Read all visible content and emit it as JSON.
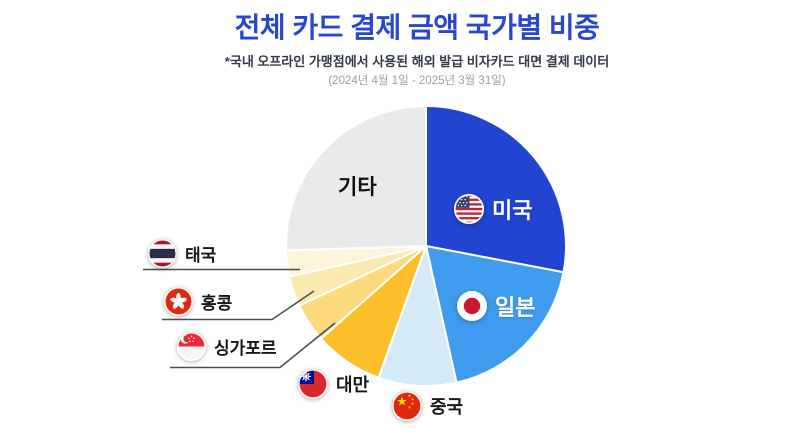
{
  "header": {
    "title": "전체 카드 결제 금액 국가별 비중",
    "subtitle": "*국내 오프라인 가맹점에서 사용된 해외 발급 비자카드 대면 결제 데이터",
    "date_range": "(2024년 4월 1일 - 2025년 3월 31일)"
  },
  "chart_data": {
    "type": "pie",
    "title": "전체 카드 결제 금액 국가별 비중",
    "start_angle_deg": 0,
    "direction": "clockwise",
    "legend_position": "on-slice-and-callouts",
    "slices": [
      {
        "label": "미국",
        "country": "usa",
        "flag_icon": "usa-flag-icon",
        "value_pct": 28.0,
        "color": "#2145d1"
      },
      {
        "label": "일본",
        "country": "japan",
        "flag_icon": "japan-flag-icon",
        "value_pct": 18.5,
        "color": "#3f9bee"
      },
      {
        "label": "중국",
        "country": "china",
        "flag_icon": "china-flag-icon",
        "value_pct": 9.0,
        "color": "#d5eaf7"
      },
      {
        "label": "대만",
        "country": "taiwan",
        "flag_icon": "taiwan-flag-icon",
        "value_pct": 8.0,
        "color": "#fcbf29"
      },
      {
        "label": "싱가포르",
        "country": "singapore",
        "flag_icon": "singapore-flag-icon",
        "value_pct": 4.5,
        "color": "#fcda7d"
      },
      {
        "label": "홍콩",
        "country": "hongkong",
        "flag_icon": "hongkong-flag-icon",
        "value_pct": 3.5,
        "color": "#fce9b0"
      },
      {
        "label": "태국",
        "country": "thailand",
        "flag_icon": "thailand-flag-icon",
        "value_pct": 3.0,
        "color": "#fdf4d9"
      },
      {
        "label": "기타",
        "country": "others",
        "flag_icon": null,
        "value_pct": 25.5,
        "color": "#e8eaec"
      }
    ]
  }
}
